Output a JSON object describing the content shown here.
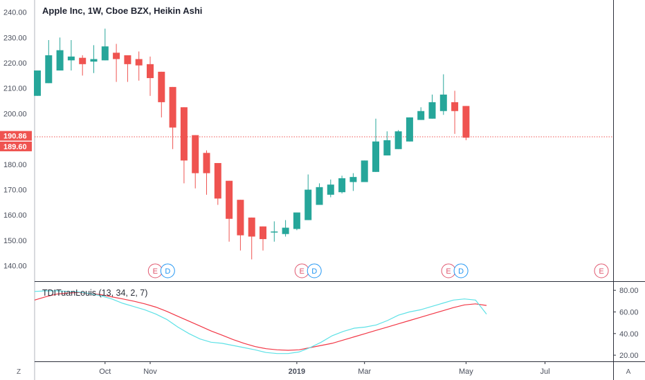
{
  "chart_data": {
    "title": "Apple Inc, 1W, Cboe BZX, Heikin Ashi",
    "type": "candlestick",
    "price_axis": {
      "ticks": [
        "240.00",
        "230.00",
        "220.00",
        "210.00",
        "200.00",
        "180.00",
        "170.00",
        "160.00",
        "150.00",
        "140.00"
      ],
      "tick_values": [
        240,
        230,
        220,
        210,
        200,
        180,
        170,
        160,
        150,
        140
      ],
      "range": [
        133.9,
        244.8
      ]
    },
    "price_badges": [
      {
        "label": "190.86",
        "value": 190.86,
        "color": "#ef5350"
      },
      {
        "label": "189.60",
        "value": 189.6,
        "color": "#ef5350"
      }
    ],
    "current_price_line": 190.86,
    "x_axis": {
      "labels": [
        "Oct",
        "Nov",
        "2019",
        "Mar",
        "May",
        "Jul"
      ],
      "label_weeks": [
        6,
        10,
        23,
        29,
        38,
        45
      ]
    },
    "candles": [
      {
        "o": 207,
        "c": 217,
        "h": 217,
        "l": 207
      },
      {
        "o": 212,
        "c": 223,
        "h": 229,
        "l": 212
      },
      {
        "o": 217,
        "c": 225,
        "h": 230,
        "l": 217
      },
      {
        "o": 221,
        "c": 222.5,
        "h": 229,
        "l": 217
      },
      {
        "o": 222,
        "c": 219.5,
        "h": 223,
        "l": 215
      },
      {
        "o": 220.5,
        "c": 221.5,
        "h": 227,
        "l": 216
      },
      {
        "o": 221,
        "c": 226.5,
        "h": 233.5,
        "l": 221
      },
      {
        "o": 224,
        "c": 221.5,
        "h": 227.5,
        "l": 212.5
      },
      {
        "o": 223,
        "c": 219.5,
        "h": 223,
        "l": 212.5
      },
      {
        "o": 221.5,
        "c": 219,
        "h": 224.5,
        "l": 213
      },
      {
        "o": 219.5,
        "c": 214,
        "h": 222.5,
        "l": 207
      },
      {
        "o": 216.5,
        "c": 204.5,
        "h": 216.5,
        "l": 198.5
      },
      {
        "o": 210.5,
        "c": 194.5,
        "h": 210.5,
        "l": 186
      },
      {
        "o": 202.5,
        "c": 181.5,
        "h": 202.5,
        "l": 172.5
      },
      {
        "o": 191.5,
        "c": 176.5,
        "h": 191.5,
        "l": 170.5
      },
      {
        "o": 184.5,
        "c": 176.5,
        "h": 185.5,
        "l": 168
      },
      {
        "o": 180.5,
        "c": 166.5,
        "h": 180.5,
        "l": 164
      },
      {
        "o": 173.5,
        "c": 158.5,
        "h": 173.5,
        "l": 149.5
      },
      {
        "o": 166,
        "c": 152,
        "h": 166,
        "l": 146
      },
      {
        "o": 159,
        "c": 151.5,
        "h": 159,
        "l": 142.5
      },
      {
        "o": 155.5,
        "c": 150.5,
        "h": 155.5,
        "l": 146
      },
      {
        "o": 153.5,
        "c": 153.5,
        "h": 157.5,
        "l": 149.5
      },
      {
        "o": 152.5,
        "c": 155,
        "h": 158,
        "l": 151.5
      },
      {
        "o": 154.5,
        "c": 161,
        "h": 161,
        "l": 154
      },
      {
        "o": 158,
        "c": 170,
        "h": 176,
        "l": 158
      },
      {
        "o": 164,
        "c": 171,
        "h": 172.5,
        "l": 164
      },
      {
        "o": 168,
        "c": 172,
        "h": 174,
        "l": 167
      },
      {
        "o": 169,
        "c": 174.5,
        "h": 175.5,
        "l": 168.5
      },
      {
        "o": 173,
        "c": 175,
        "h": 176.5,
        "l": 169.5
      },
      {
        "o": 173,
        "c": 181.5,
        "h": 181.5,
        "l": 173
      },
      {
        "o": 177,
        "c": 189,
        "h": 198,
        "l": 177
      },
      {
        "o": 183.5,
        "c": 189.5,
        "h": 193,
        "l": 183.5
      },
      {
        "o": 186,
        "c": 193,
        "h": 193.5,
        "l": 186
      },
      {
        "o": 189,
        "c": 198.5,
        "h": 198.5,
        "l": 189
      },
      {
        "o": 197.5,
        "c": 201,
        "h": 202.5,
        "l": 197.5
      },
      {
        "o": 198,
        "c": 204.5,
        "h": 207.5,
        "l": 198
      },
      {
        "o": 201,
        "c": 207.5,
        "h": 215.5,
        "l": 199.5
      },
      {
        "o": 204.5,
        "c": 201,
        "h": 209,
        "l": 192
      },
      {
        "o": 203,
        "c": 190.5,
        "h": 203,
        "l": 189.5
      }
    ],
    "earnings_markers": [
      {
        "week": 11,
        "letters": [
          "E",
          "D"
        ]
      },
      {
        "week": 24,
        "letters": [
          "E",
          "D"
        ]
      },
      {
        "week": 37,
        "letters": [
          "E",
          "D"
        ]
      },
      {
        "week": 50,
        "letters": [
          "E"
        ]
      }
    ],
    "indicator": {
      "title": "TDITuanLouis (13, 34, 2, 7)",
      "ticks": [
        "80.00",
        "60.00",
        "40.00",
        "20.00"
      ],
      "tick_values": [
        80,
        60,
        40,
        20
      ],
      "range": [
        14.3,
        87.8
      ],
      "series": [
        {
          "color": "#f23645",
          "values": [
            71,
            74,
            76.5,
            77.5,
            78,
            77,
            76,
            74,
            72,
            70,
            67.5,
            64.5,
            60.5,
            56,
            51.5,
            47,
            42.5,
            38.5,
            34.5,
            31,
            28,
            26,
            25,
            24.5,
            25,
            27,
            29,
            31,
            34,
            37,
            40,
            43,
            46,
            49,
            52,
            55,
            58,
            61,
            64,
            66.5,
            67.5,
            66
          ]
        },
        {
          "color": "#5ce1e6",
          "values": [
            79,
            79.5,
            79.5,
            79,
            78.5,
            77,
            75,
            72,
            68,
            65,
            62,
            58,
            53,
            46,
            40,
            35,
            32,
            31,
            29,
            27,
            25,
            22.5,
            21.5,
            21.5,
            23,
            27,
            32,
            38,
            42,
            45,
            46,
            48,
            52,
            57,
            60,
            62,
            65,
            68,
            71,
            72,
            71,
            58
          ]
        }
      ]
    },
    "bottom_buttons": [
      "Z",
      "A"
    ],
    "colors": {
      "up": "#26a69a",
      "down": "#ef5350",
      "earnings": "#e0566e",
      "dividend": "#2196f3"
    }
  }
}
